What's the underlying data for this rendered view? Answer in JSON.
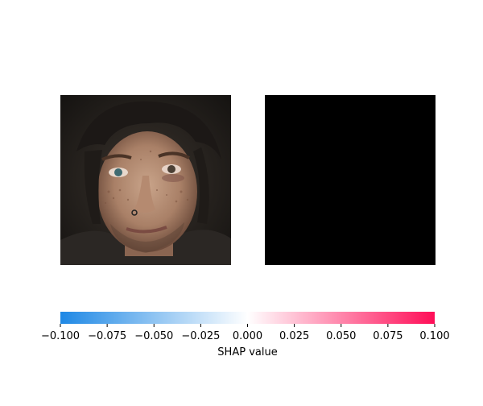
{
  "chart_data": {
    "type": "heatmap",
    "panels": [
      {
        "name": "input-image",
        "content": "photo of a face"
      },
      {
        "name": "shap-map",
        "content": "all-zero attribution map",
        "values": "all 0.0"
      }
    ],
    "colorbar": {
      "label": "SHAP value",
      "min": -0.1,
      "max": 0.1,
      "ticks": [
        -0.1,
        -0.075,
        -0.05,
        -0.025,
        0.0,
        0.025,
        0.05,
        0.075,
        0.1
      ],
      "tick_labels": [
        "−0.100",
        "−0.075",
        "−0.050",
        "−0.025",
        "0.000",
        "0.025",
        "0.050",
        "0.075",
        "0.100"
      ],
      "colors": {
        "negative": "#1e88e5",
        "zero": "#ffffff",
        "positive": "#ff0d57"
      }
    }
  }
}
